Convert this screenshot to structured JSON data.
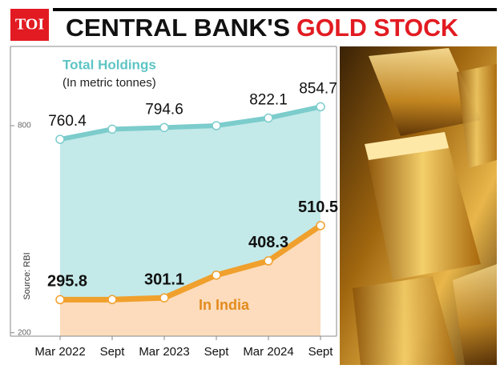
{
  "header": {
    "logo": "TOI",
    "title": "CENTRAL BANK'S",
    "title_highlight": "GOLD STOCK"
  },
  "chart_data": {
    "type": "area-line",
    "subtitle": "(In metric tonnes)",
    "source": "Source: RBI",
    "annotation": "In India",
    "categories": [
      "Mar 2022",
      "Sept",
      "Mar 2023",
      "Sept",
      "Mar 2024",
      "Sept"
    ],
    "series": [
      {
        "name": "Total Holdings",
        "color": "#7ccccc",
        "fill": "#c4e9e9",
        "values": [
          760.4,
          790,
          794.6,
          800,
          822.1,
          854.7
        ],
        "value_labels": [
          "760.4",
          null,
          "794.6",
          null,
          "822.1",
          "854.7"
        ]
      },
      {
        "name": "In India",
        "color": "#f0a02c",
        "fill": "#fcdcbc",
        "values": [
          295.8,
          296,
          301.1,
          367,
          408.3,
          510.5
        ],
        "value_labels": [
          "295.8",
          null,
          "301.1",
          null,
          "408.3",
          "510.5"
        ]
      }
    ],
    "ylim": [
      190,
      1025
    ],
    "yticks": [
      200,
      800
    ],
    "grid": false
  }
}
